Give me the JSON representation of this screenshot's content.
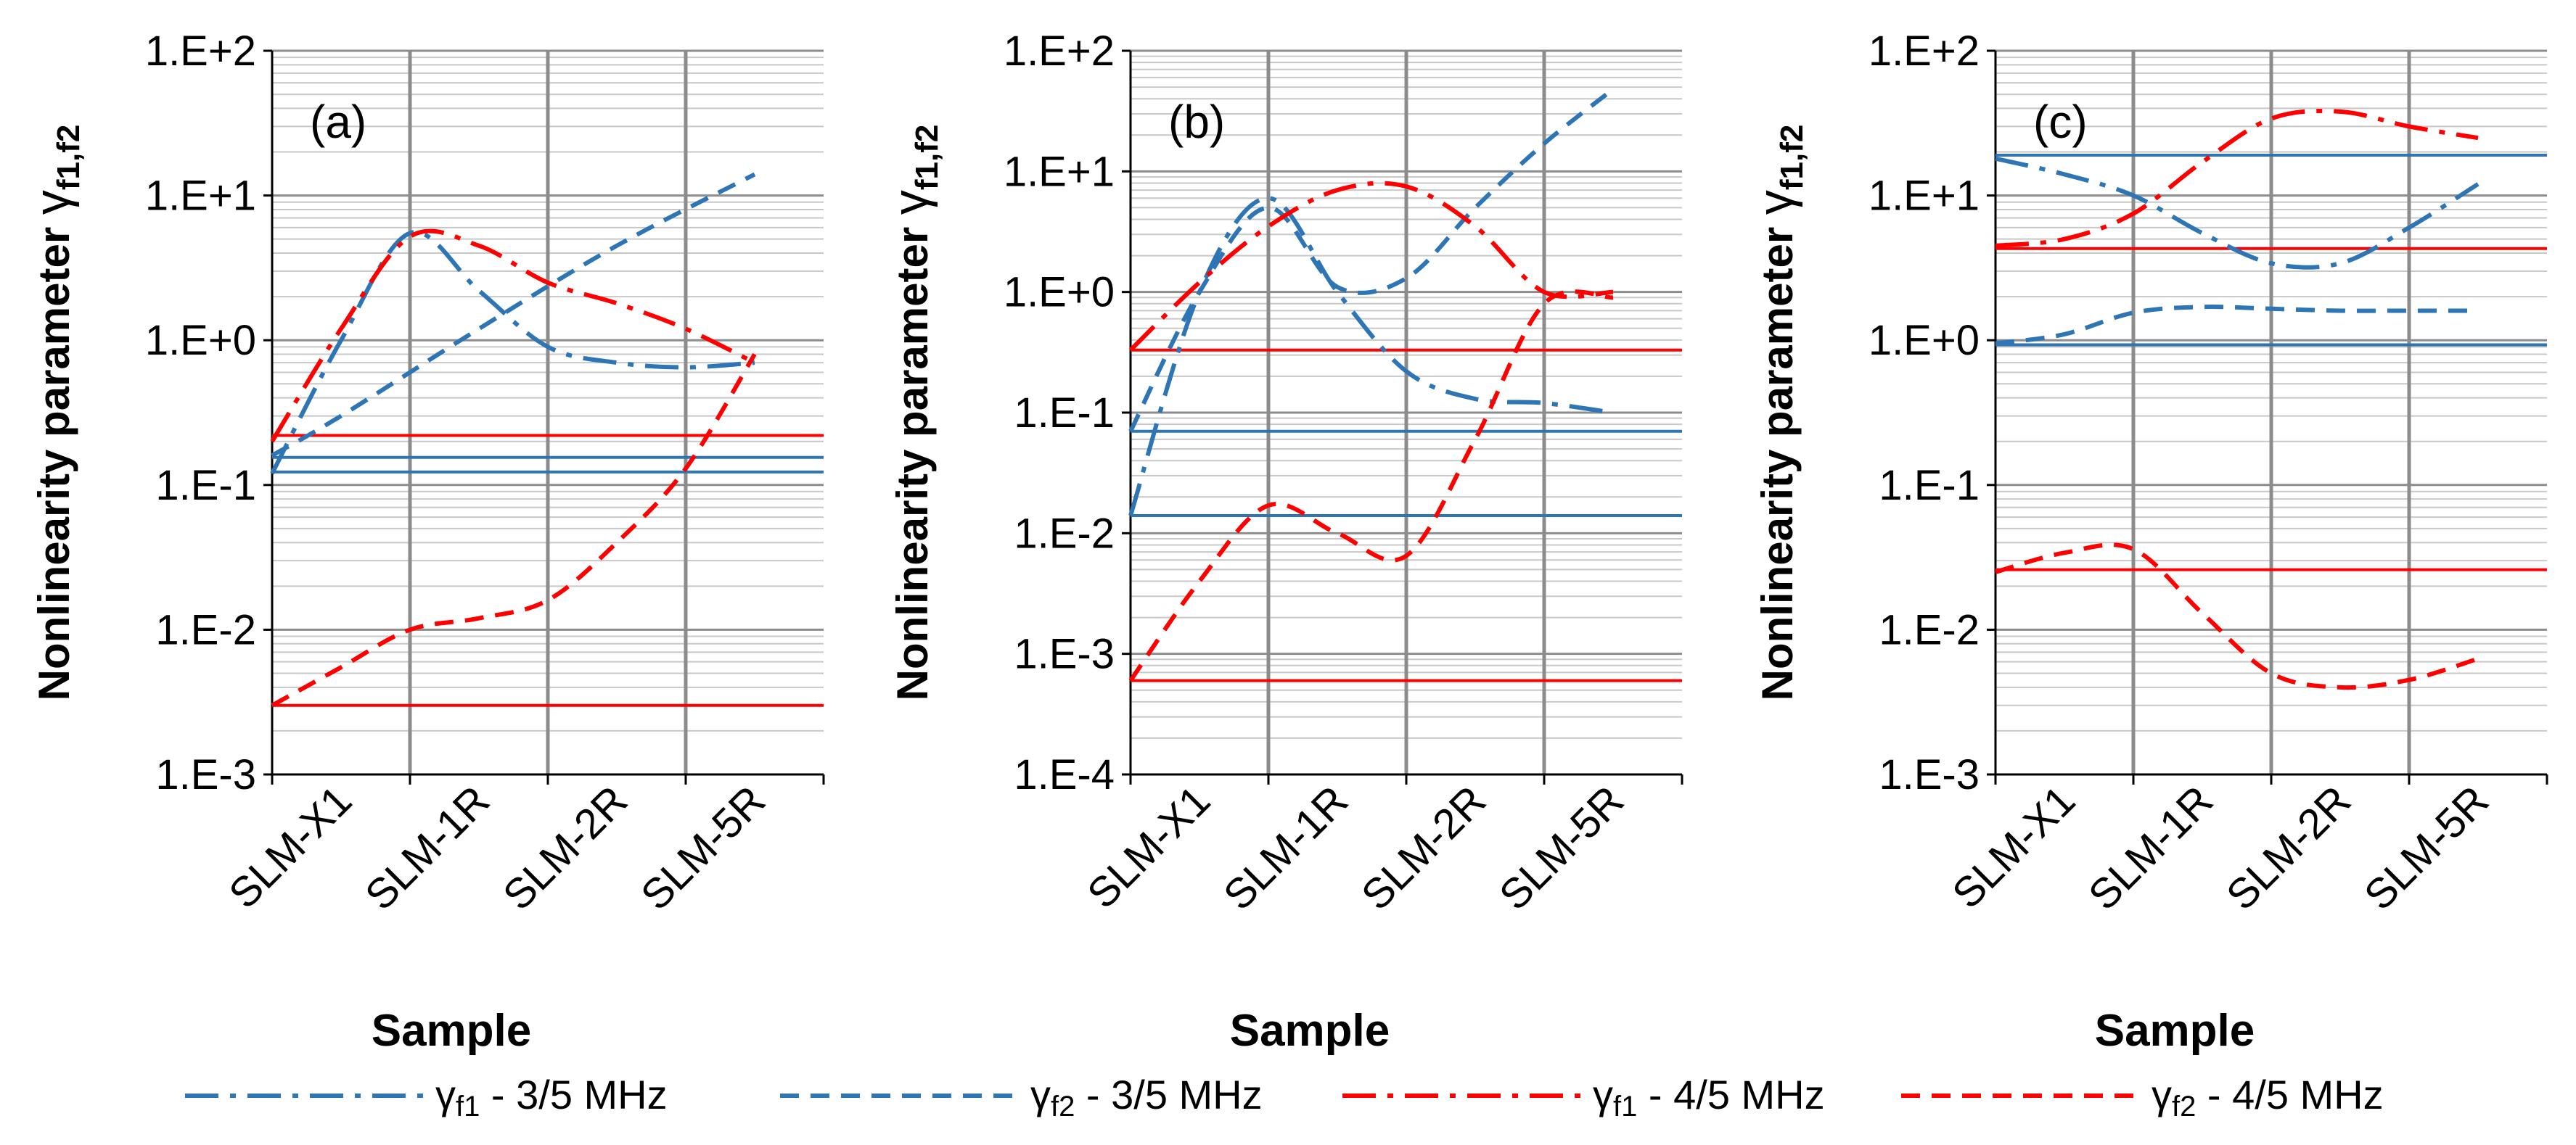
{
  "chart_data": [
    {
      "type": "line",
      "panel_label": "(a)",
      "ylabel": "Nonlinearity parameter",
      "ylabel_symbol": "γ",
      "ylabel_subscript": "f1,f2",
      "xlabel": "Sample",
      "yscale": "log",
      "ylim_log10": [
        -3,
        2
      ],
      "yticks": [
        "1.E-3",
        "1.E-2",
        "1.E-1",
        "1.E+0",
        "1.E+1",
        "1.E+2"
      ],
      "categories": [
        "SLM-X1",
        "SLM-1R",
        "SLM-2R",
        "SLM-5R"
      ],
      "series": [
        {
          "name": "γf1 - 3/5 MHz",
          "color": "#2e75b6",
          "dash": "dashdot",
          "x": [
            -0.5,
            0,
            0.5,
            1,
            1.5,
            2,
            2.5,
            3
          ],
          "values": [
            0.12,
            1.0,
            5.5,
            2.2,
            0.9,
            0.7,
            0.65,
            0.7
          ]
        },
        {
          "name": "γf2 - 3/5 MHz",
          "color": "#2e75b6",
          "dash": "dash",
          "x": [
            -0.5,
            0,
            1,
            2,
            3
          ],
          "values": [
            0.16,
            0.3,
            1.2,
            4.5,
            14
          ]
        },
        {
          "name": "γf1 - 4/5 MHz",
          "color": "#ff0000",
          "dash": "dashdot",
          "x": [
            -0.5,
            0,
            0.5,
            1,
            1.5,
            2,
            2.5,
            3
          ],
          "values": [
            0.2,
            1.2,
            5.2,
            4.5,
            2.5,
            1.8,
            1.2,
            0.7
          ]
        },
        {
          "name": "γf2 - 4/5 MHz",
          "color": "#ff0000",
          "dash": "dash",
          "x": [
            -0.5,
            0,
            0.5,
            1,
            1.5,
            2,
            2.5,
            3
          ],
          "values": [
            0.003,
            0.0055,
            0.01,
            0.012,
            0.016,
            0.04,
            0.13,
            0.8
          ]
        }
      ],
      "reference_lines": [
        {
          "color": "#ff0000",
          "value": 0.22
        },
        {
          "color": "#2e75b6",
          "value": 0.155
        },
        {
          "color": "#2e75b6",
          "value": 0.123
        },
        {
          "color": "#ff0000",
          "value": 0.003
        }
      ]
    },
    {
      "type": "line",
      "panel_label": "(b)",
      "ylabel": "Nonlinearity parameter",
      "ylabel_symbol": "γ",
      "ylabel_subscript": "f1,f2",
      "xlabel": "Sample",
      "yscale": "log",
      "ylim_log10": [
        -4,
        2
      ],
      "yticks": [
        "1.E-4",
        "1.E-3",
        "1.E-2",
        "1.E-1",
        "1.E+0",
        "1.E+1",
        "1.E+2"
      ],
      "categories": [
        "SLM-X1",
        "SLM-1R",
        "SLM-2R",
        "SLM-5R"
      ],
      "series": [
        {
          "name": "γf1 - 3/5 MHz",
          "color": "#2e75b6",
          "dash": "dashdot",
          "x": [
            -0.5,
            0,
            0.5,
            1,
            1.5,
            2,
            2.5,
            3
          ],
          "values": [
            0.014,
            1.0,
            6.0,
            1.0,
            0.22,
            0.13,
            0.12,
            0.1
          ]
        },
        {
          "name": "γf2 - 3/5 MHz",
          "color": "#2e75b6",
          "dash": "dash",
          "x": [
            -0.5,
            0,
            0.5,
            1,
            1.5,
            2,
            2.5,
            3
          ],
          "values": [
            0.07,
            1.0,
            5.0,
            1.1,
            1.3,
            5.0,
            17,
            48
          ]
        },
        {
          "name": "γf1 - 4/5 MHz",
          "color": "#ff0000",
          "dash": "dashdot",
          "x": [
            -0.5,
            0,
            0.5,
            1,
            1.5,
            2,
            2.5,
            3
          ],
          "values": [
            0.33,
            1.2,
            3.5,
            7.0,
            7.5,
            3.5,
            1.0,
            1.0
          ]
        },
        {
          "name": "γf2 - 4/5 MHz",
          "color": "#ff0000",
          "dash": "dash",
          "x": [
            -0.5,
            0,
            0.5,
            1,
            1.5,
            2,
            2.5,
            3
          ],
          "values": [
            0.0006,
            0.004,
            0.017,
            0.01,
            0.0065,
            0.06,
            0.8,
            0.9
          ]
        }
      ],
      "reference_lines": [
        {
          "color": "#ff0000",
          "value": 0.33
        },
        {
          "color": "#2e75b6",
          "value": 0.07
        },
        {
          "color": "#2e75b6",
          "value": 0.014
        },
        {
          "color": "#ff0000",
          "value": 0.0006
        }
      ]
    },
    {
      "type": "line",
      "panel_label": "(c)",
      "ylabel": "Nonlinearity parameter",
      "ylabel_symbol": "γ",
      "ylabel_subscript": "f1,f2",
      "xlabel": "Sample",
      "yscale": "log",
      "ylim_log10": [
        -3,
        2
      ],
      "yticks": [
        "1.E-3",
        "1.E-2",
        "1.E-1",
        "1.E+0",
        "1.E+1",
        "1.E+2"
      ],
      "categories": [
        "SLM-X1",
        "SLM-1R",
        "SLM-2R",
        "SLM-5R"
      ],
      "series": [
        {
          "name": "γf1 - 3/5 MHz",
          "color": "#2e75b6",
          "dash": "dashdot",
          "x": [
            -0.5,
            0,
            0.5,
            1,
            1.5,
            2,
            2.5,
            3
          ],
          "values": [
            18,
            14,
            10,
            5.5,
            3.4,
            3.4,
            6.0,
            12
          ]
        },
        {
          "name": "γf2 - 3/5 MHz",
          "color": "#2e75b6",
          "dash": "dash",
          "x": [
            -0.5,
            0,
            0.5,
            1,
            1.5,
            2,
            2.5,
            3
          ],
          "values": [
            0.95,
            1.1,
            1.55,
            1.7,
            1.65,
            1.6,
            1.6,
            1.6
          ]
        },
        {
          "name": "γf1 - 4/5 MHz",
          "color": "#ff0000",
          "dash": "dashdot",
          "x": [
            -0.5,
            0,
            0.5,
            1,
            1.5,
            2,
            2.5,
            3
          ],
          "values": [
            4.5,
            5.0,
            7.5,
            17,
            34,
            38,
            30,
            25
          ]
        },
        {
          "name": "γf2 - 4/5 MHz",
          "color": "#ff0000",
          "dash": "dash",
          "x": [
            -0.5,
            0,
            0.5,
            1,
            1.5,
            2,
            2.5,
            3
          ],
          "values": [
            0.025,
            0.034,
            0.036,
            0.013,
            0.005,
            0.004,
            0.0045,
            0.0063
          ]
        }
      ],
      "reference_lines": [
        {
          "color": "#2e75b6",
          "value": 19
        },
        {
          "color": "#ff0000",
          "value": 4.3
        },
        {
          "color": "#2e75b6",
          "value": 0.93
        },
        {
          "color": "#ff0000",
          "value": 0.026
        }
      ]
    }
  ],
  "legend": [
    {
      "symbol": "γ",
      "sub": "f1",
      "text": " - 3/5 MHz",
      "color": "#2e75b6",
      "dash": "dashdot"
    },
    {
      "symbol": "γ",
      "sub": "f2",
      "text": " - 3/5 MHz",
      "color": "#2e75b6",
      "dash": "dash"
    },
    {
      "symbol": "γ",
      "sub": "f1",
      "text": " - 4/5 MHz",
      "color": "#ff0000",
      "dash": "dashdot"
    },
    {
      "symbol": "γ",
      "sub": "f2",
      "text": " - 4/5 MHz",
      "color": "#ff0000",
      "dash": "dash"
    }
  ]
}
